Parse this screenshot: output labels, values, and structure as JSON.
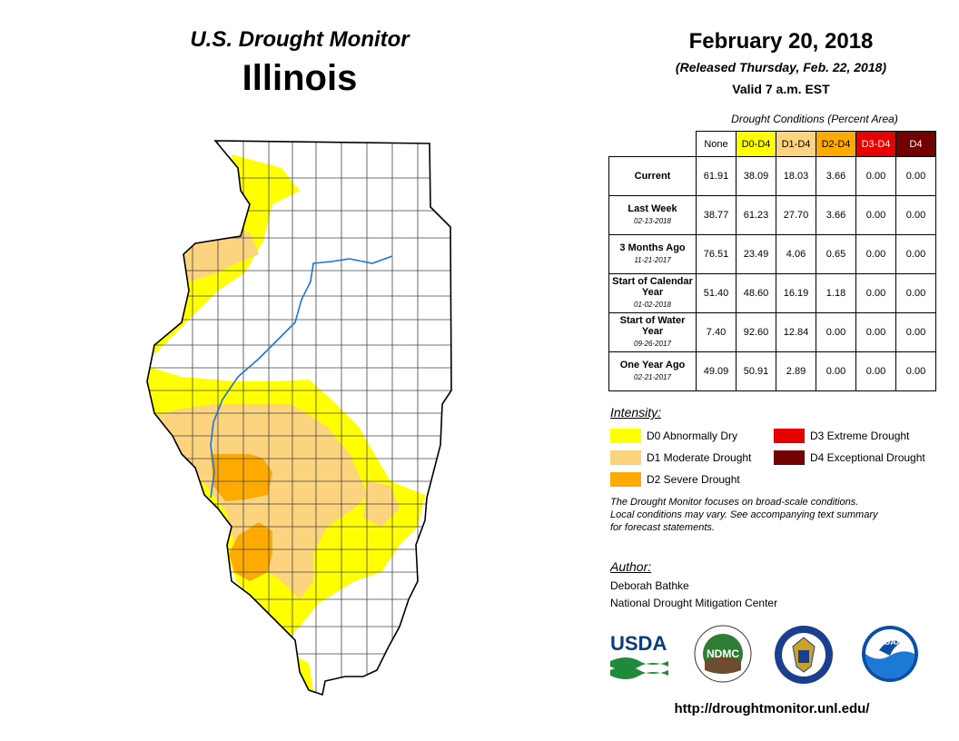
{
  "map": {
    "title": "U.S. Drought Monitor",
    "state": "Illinois"
  },
  "header": {
    "date": "February 20, 2018",
    "released": "(Released Thursday, Feb. 22, 2018)",
    "valid": "Valid 7 a.m. EST"
  },
  "table": {
    "caption": "Drought Conditions (Percent Area)",
    "columns": [
      "None",
      "D0-D4",
      "D1-D4",
      "D2-D4",
      "D3-D4",
      "D4"
    ],
    "rows": [
      {
        "label": "Current",
        "sub": "",
        "values": [
          "61.91",
          "38.09",
          "18.03",
          "3.66",
          "0.00",
          "0.00"
        ]
      },
      {
        "label": "Last Week",
        "sub": "02-13-2018",
        "values": [
          "38.77",
          "61.23",
          "27.70",
          "3.66",
          "0.00",
          "0.00"
        ]
      },
      {
        "label": "3 Months Ago",
        "sub": "11-21-2017",
        "values": [
          "76.51",
          "23.49",
          "4.06",
          "0.65",
          "0.00",
          "0.00"
        ]
      },
      {
        "label": "Start of Calendar Year",
        "sub": "01-02-2018",
        "values": [
          "51.40",
          "48.60",
          "16.19",
          "1.18",
          "0.00",
          "0.00"
        ]
      },
      {
        "label": "Start of Water Year",
        "sub": "09-26-2017",
        "values": [
          "7.40",
          "92.60",
          "12.84",
          "0.00",
          "0.00",
          "0.00"
        ]
      },
      {
        "label": "One Year Ago",
        "sub": "02-21-2017",
        "values": [
          "49.09",
          "50.91",
          "2.89",
          "0.00",
          "0.00",
          "0.00"
        ]
      }
    ]
  },
  "legend": {
    "title": "Intensity:",
    "items": [
      {
        "label": "D0 Abnormally Dry",
        "color": "#ffff00"
      },
      {
        "label": "D1 Moderate Drought",
        "color": "#fcd37f"
      },
      {
        "label": "D2 Severe Drought",
        "color": "#ffaa00"
      },
      {
        "label": "D3 Extreme Drought",
        "color": "#e60000"
      },
      {
        "label": "D4 Exceptional Drought",
        "color": "#730000"
      }
    ]
  },
  "disclaimer": {
    "line1": "The Drought Monitor focuses on broad-scale conditions.",
    "line2": "Local conditions may vary. See accompanying text summary",
    "line3": "for forecast statements."
  },
  "author": {
    "title": "Author:",
    "name": "Deborah Bathke",
    "org": "National Drought Mitigation Center"
  },
  "logos": {
    "usda": "USDA",
    "ndmc": "NDMC",
    "noaa": "NOAA"
  },
  "url": "http://droughtmonitor.unl.edu/"
}
